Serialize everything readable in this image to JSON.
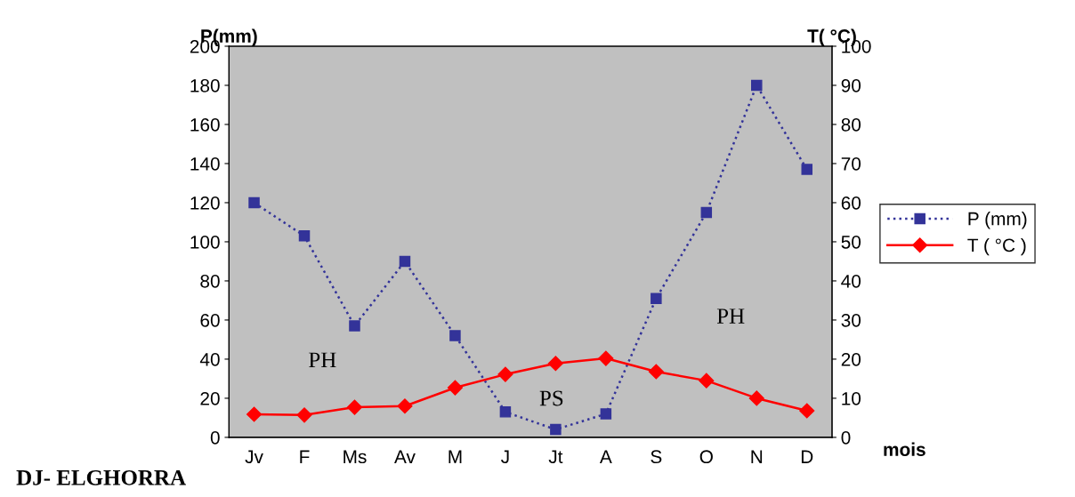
{
  "chart_data": {
    "type": "line",
    "ylabel": "P(mm)",
    "y2label": "T( °C)",
    "xlabel": "mois",
    "categories": [
      "Jv",
      "F",
      "Ms",
      "Av",
      "M",
      "J",
      "Jt",
      "A",
      "S",
      "O",
      "N",
      "D"
    ],
    "series": [
      {
        "name": "P (mm)",
        "color": "#333399",
        "marker": "square",
        "line_style": "dotted",
        "values": [
          120,
          103,
          57,
          90,
          52,
          13,
          4,
          12,
          71,
          115,
          180,
          137
        ]
      },
      {
        "name": "T ( °C )",
        "color": "#ff0000",
        "marker": "diamond",
        "line_style": "solid",
        "axis": "y2",
        "values": [
          5.9,
          5.7,
          7.7,
          8,
          12.7,
          16.1,
          18.9,
          20.2,
          16.8,
          14.5,
          10,
          6.8
        ]
      }
    ],
    "ylim": [
      0,
      200
    ],
    "yticks": [
      0,
      20,
      40,
      60,
      80,
      100,
      120,
      140,
      160,
      180,
      200
    ],
    "y2lim": [
      0,
      100
    ],
    "y2ticks": [
      0,
      10,
      20,
      30,
      40,
      50,
      60,
      70,
      80,
      90,
      100
    ],
    "grid": false,
    "legend": "right",
    "annotations": [
      "PH",
      "PS",
      "PH",
      "DJ- ELGHORRA"
    ]
  }
}
